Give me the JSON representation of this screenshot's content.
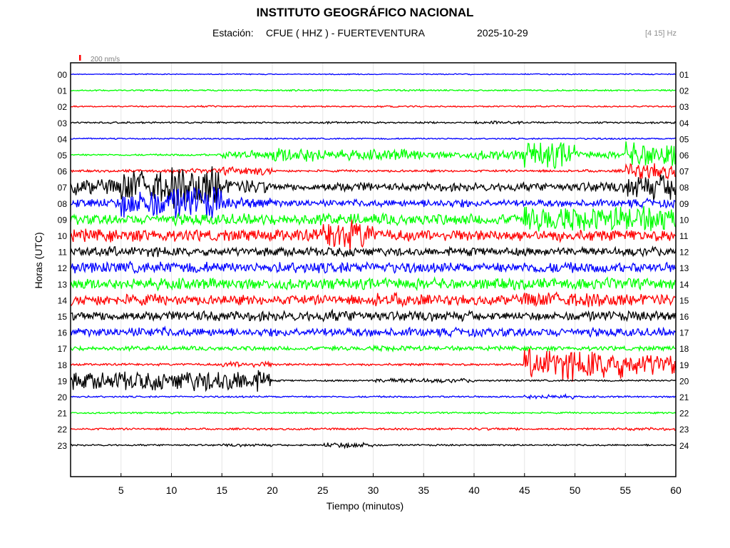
{
  "header": {
    "title": "INSTITUTO GEOGRÁFICO NACIONAL",
    "station_label": "Estación:",
    "station": "CFUE ( HHZ ) - FUERTEVENTURA",
    "date": "2025-10-29",
    "band": "[4 15] Hz"
  },
  "chart_data": {
    "type": "line",
    "title": "INSTITUTO GEOGRÁFICO NACIONAL",
    "xlabel": "Tiempo (minutos)",
    "ylabel": "Horas (UTC)",
    "xlim": [
      0,
      60
    ],
    "x_ticks": [
      "5",
      "10",
      "15",
      "20",
      "25",
      "30",
      "35",
      "40",
      "45",
      "50",
      "55",
      "60"
    ],
    "scale_label": "200 nm/s",
    "grid": "vertical",
    "trace_colors": [
      "#0000ff",
      "#00ff00",
      "#ff0000",
      "#000000"
    ],
    "left_labels": [
      "00",
      "01",
      "02",
      "03",
      "04",
      "05",
      "06",
      "07",
      "08",
      "09",
      "10",
      "11",
      "12",
      "13",
      "14",
      "15",
      "16",
      "17",
      "18",
      "19",
      "20",
      "21",
      "22",
      "23"
    ],
    "right_labels": [
      "01",
      "02",
      "03",
      "04",
      "05",
      "06",
      "07",
      "08",
      "09",
      "10",
      "11",
      "12",
      "13",
      "14",
      "15",
      "16",
      "17",
      "18",
      "19",
      "20",
      "21",
      "22",
      "23",
      "24"
    ],
    "series": [
      {
        "values": [
          0.03,
          0.04,
          0.03,
          0.04,
          0.03,
          0.04,
          0.03,
          0.04,
          0.03,
          0.04,
          0.03,
          0.04
        ]
      },
      {
        "values": [
          0.05,
          0.06,
          0.05,
          0.05,
          0.06,
          0.05,
          0.07,
          0.05,
          0.05,
          0.06,
          0.05,
          0.05
        ]
      },
      {
        "values": [
          0.05,
          0.05,
          0.06,
          0.05,
          0.05,
          0.05,
          0.06,
          0.05,
          0.05,
          0.06,
          0.05,
          0.05
        ]
      },
      {
        "values": [
          0.06,
          0.06,
          0.06,
          0.06,
          0.06,
          0.07,
          0.06,
          0.06,
          0.1,
          0.06,
          0.06,
          0.07
        ]
      },
      {
        "values": [
          0.05,
          0.05,
          0.05,
          0.05,
          0.05,
          0.05,
          0.05,
          0.05,
          0.05,
          0.05,
          0.06,
          0.05
        ]
      },
      {
        "values": [
          0.06,
          0.06,
          0.07,
          0.3,
          0.55,
          0.35,
          0.4,
          0.25,
          0.35,
          0.95,
          0.25,
          0.9
        ]
      },
      {
        "values": [
          0.08,
          0.1,
          0.15,
          0.3,
          0.08,
          0.08,
          0.08,
          0.08,
          0.08,
          0.08,
          0.1,
          0.55
        ]
      },
      {
        "values": [
          0.55,
          1.2,
          1.5,
          0.5,
          0.25,
          0.35,
          0.25,
          0.3,
          0.3,
          0.3,
          0.35,
          0.9
        ]
      },
      {
        "values": [
          0.35,
          1.0,
          1.2,
          0.4,
          0.25,
          0.25,
          0.25,
          0.3,
          0.25,
          0.25,
          0.25,
          0.3
        ]
      },
      {
        "values": [
          0.35,
          0.35,
          0.4,
          0.4,
          0.4,
          0.4,
          0.4,
          0.4,
          0.4,
          0.9,
          0.9,
          0.9
        ]
      },
      {
        "values": [
          0.45,
          0.45,
          0.4,
          0.4,
          0.45,
          1.1,
          0.4,
          0.4,
          0.4,
          0.4,
          0.4,
          0.4
        ]
      },
      {
        "values": [
          0.35,
          0.35,
          0.3,
          0.3,
          0.3,
          0.35,
          0.3,
          0.3,
          0.3,
          0.3,
          0.3,
          0.35
        ]
      },
      {
        "values": [
          0.4,
          0.4,
          0.4,
          0.35,
          0.4,
          0.4,
          0.4,
          0.35,
          0.35,
          0.4,
          0.35,
          0.35
        ]
      },
      {
        "values": [
          0.4,
          0.4,
          0.4,
          0.4,
          0.4,
          0.4,
          0.4,
          0.4,
          0.4,
          0.4,
          0.4,
          0.4
        ]
      },
      {
        "values": [
          0.4,
          0.4,
          0.35,
          0.35,
          0.35,
          0.35,
          0.5,
          0.35,
          0.35,
          0.55,
          0.5,
          0.4
        ]
      },
      {
        "values": [
          0.35,
          0.35,
          0.35,
          0.35,
          0.35,
          0.4,
          0.35,
          0.35,
          0.3,
          0.3,
          0.35,
          0.35
        ]
      },
      {
        "values": [
          0.3,
          0.35,
          0.3,
          0.3,
          0.3,
          0.3,
          0.3,
          0.3,
          0.3,
          0.3,
          0.3,
          0.3
        ]
      },
      {
        "values": [
          0.15,
          0.15,
          0.15,
          0.15,
          0.15,
          0.15,
          0.2,
          0.15,
          0.15,
          0.15,
          0.15,
          0.15
        ]
      },
      {
        "values": [
          0.08,
          0.08,
          0.08,
          0.2,
          0.08,
          0.08,
          0.08,
          0.08,
          0.08,
          1.1,
          1.0,
          0.8
        ]
      },
      {
        "values": [
          0.6,
          0.7,
          0.75,
          0.8,
          0.06,
          0.06,
          0.15,
          0.15,
          0.06,
          0.06,
          0.06,
          0.06
        ]
      },
      {
        "values": [
          0.06,
          0.06,
          0.06,
          0.06,
          0.06,
          0.06,
          0.06,
          0.06,
          0.06,
          0.15,
          0.06,
          0.06
        ]
      },
      {
        "values": [
          0.06,
          0.06,
          0.06,
          0.06,
          0.06,
          0.06,
          0.06,
          0.06,
          0.06,
          0.06,
          0.06,
          0.06
        ]
      },
      {
        "values": [
          0.07,
          0.07,
          0.07,
          0.07,
          0.07,
          0.07,
          0.07,
          0.07,
          0.1,
          0.07,
          0.07,
          0.1
        ]
      },
      {
        "values": [
          0.06,
          0.06,
          0.06,
          0.1,
          0.06,
          0.2,
          0.06,
          0.06,
          0.06,
          0.06,
          0.06,
          0.06
        ]
      }
    ]
  }
}
